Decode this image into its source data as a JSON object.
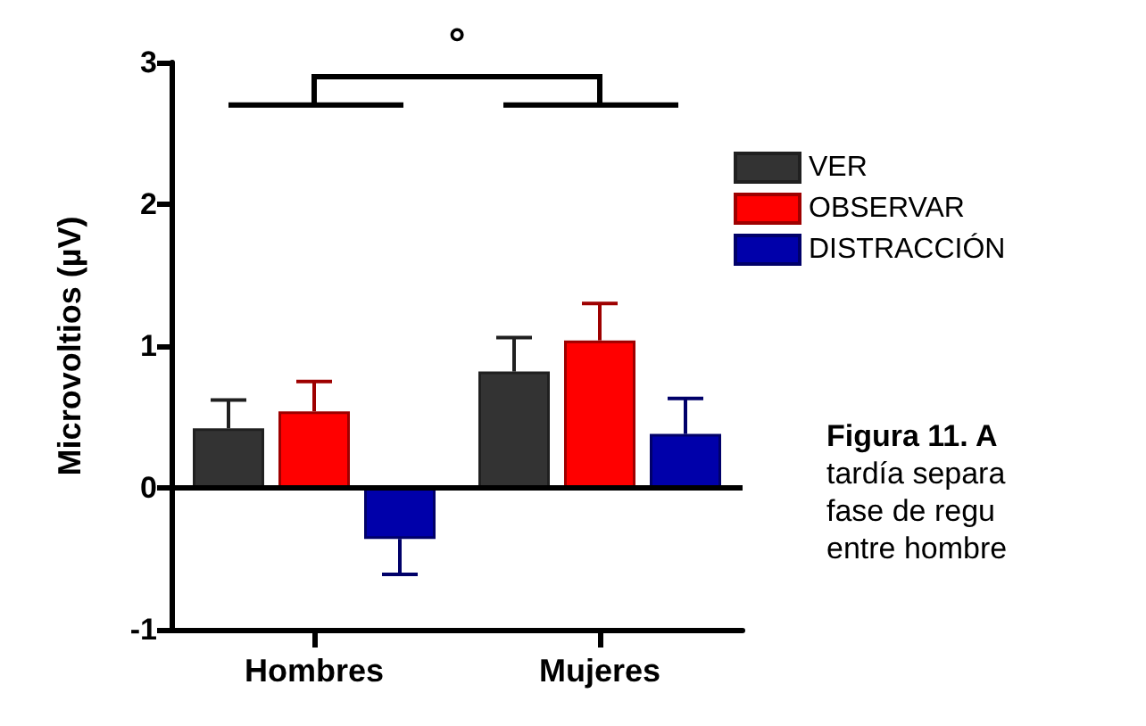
{
  "chart_data": {
    "type": "bar",
    "ylabel": "Microvoltios (µV)",
    "categories": [
      "Hombres",
      "Mujeres"
    ],
    "series": [
      {
        "name": "VER",
        "color": "#333333",
        "values": [
          0.42,
          0.82
        ],
        "errors": [
          [
            0.42,
            0.62
          ],
          [
            0.82,
            1.06
          ]
        ]
      },
      {
        "name": "OBSERVAR",
        "color": "#ff0000",
        "values": [
          0.54,
          1.04
        ],
        "errors": [
          [
            0.54,
            0.75
          ],
          [
            1.04,
            1.3
          ]
        ]
      },
      {
        "name": "DISTRACCIÓN",
        "color": "#0000aa",
        "values": [
          -0.36,
          0.38
        ],
        "errors": [
          [
            -0.61,
            -0.36
          ],
          [
            0.38,
            0.63
          ]
        ]
      }
    ],
    "ylim": [
      -1,
      3
    ],
    "yticks": [
      -1,
      0,
      1,
      2,
      3
    ],
    "grid": false,
    "legend": "right",
    "ref_lines": [
      {
        "axis": "y",
        "value": 0
      }
    ],
    "annotations": [
      "°",
      "Figura 11. A",
      "tardía separa",
      "fase de regu",
      "entre hombre"
    ]
  }
}
